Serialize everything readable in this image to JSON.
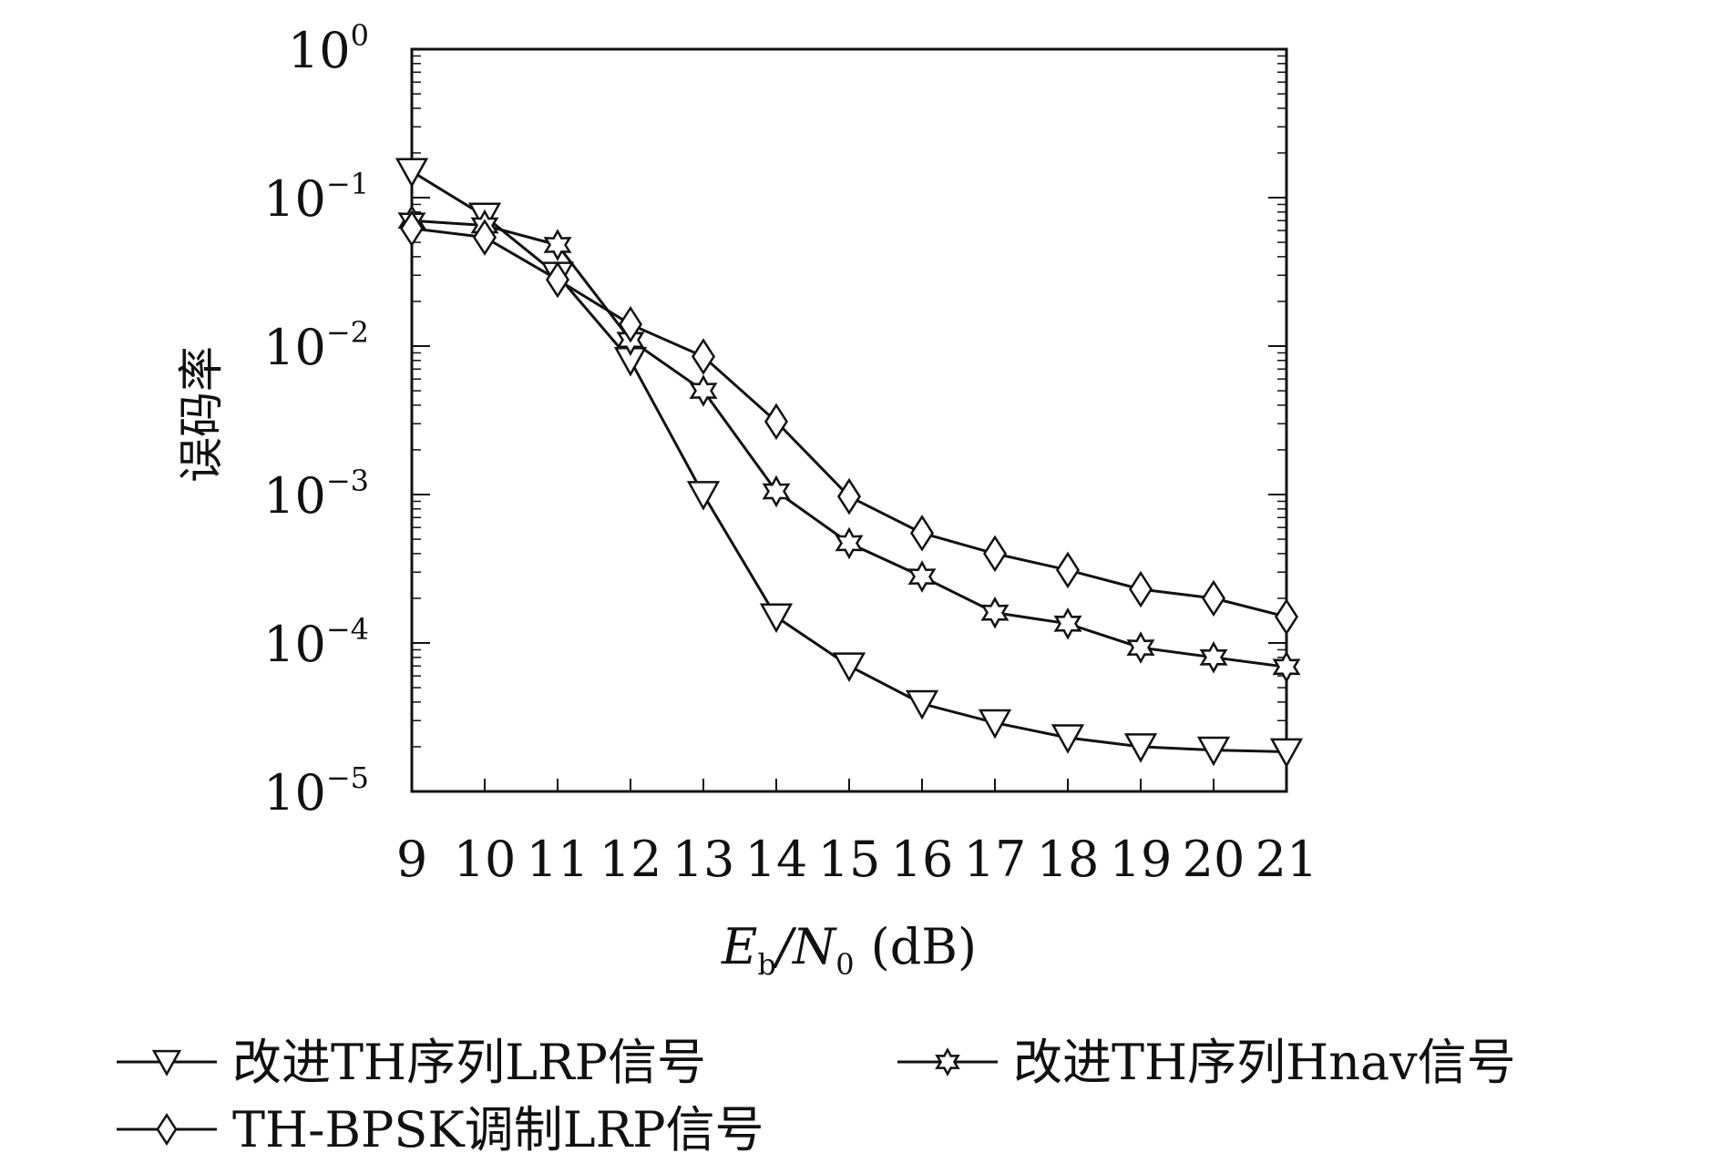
{
  "chart_data": {
    "type": "line",
    "title": "",
    "xlabel": {
      "main": "E",
      "sub1": "b",
      "slash": "/N",
      "sub2": "0",
      "unit": "(dB)"
    },
    "ylabel": "误码率",
    "y_scale": "log",
    "ylim": [
      1e-05,
      1
    ],
    "xlim": [
      9,
      21
    ],
    "x": [
      9,
      10,
      11,
      12,
      13,
      14,
      15,
      16,
      17,
      18,
      19,
      20,
      21
    ],
    "x_tick_labels": [
      "9",
      "10",
      "11",
      "12",
      "13",
      "14",
      "15",
      "16",
      "17",
      "18",
      "19",
      "20",
      "21"
    ],
    "y_ticks": [
      {
        "value": 1,
        "base": "10",
        "exp": "0"
      },
      {
        "value": 0.1,
        "base": "10",
        "exp": "−1"
      },
      {
        "value": 0.01,
        "base": "10",
        "exp": "−2"
      },
      {
        "value": 0.001,
        "base": "10",
        "exp": "−3"
      },
      {
        "value": 0.0001,
        "base": "10",
        "exp": "−4"
      },
      {
        "value": 1e-05,
        "base": "10",
        "exp": "−5"
      }
    ],
    "grid": false,
    "legend_position": "bottom",
    "series": [
      {
        "name": "改进TH序列LRP信号",
        "marker": "triangle-down",
        "values": [
          0.15,
          0.075,
          0.03,
          0.008,
          0.001,
          0.00015,
          7e-05,
          3.9e-05,
          2.9e-05,
          2.3e-05,
          2e-05,
          1.9e-05,
          1.85e-05
        ]
      },
      {
        "name": "改进TH序列Hnav信号",
        "marker": "hexagram",
        "values": [
          0.07,
          0.065,
          0.048,
          0.011,
          0.005,
          0.00105,
          0.00047,
          0.00028,
          0.00016,
          0.000135,
          9.3e-05,
          8e-05,
          6.9e-05
        ]
      },
      {
        "name": "TH-BPSK调制LRP信号",
        "marker": "diamond",
        "values": [
          0.062,
          0.054,
          0.028,
          0.014,
          0.0085,
          0.0031,
          0.00097,
          0.00055,
          0.0004,
          0.00031,
          0.00023,
          0.0002,
          0.00015
        ]
      }
    ],
    "colors": {
      "line": "#111111",
      "marker_fill": "#ffffff"
    }
  }
}
